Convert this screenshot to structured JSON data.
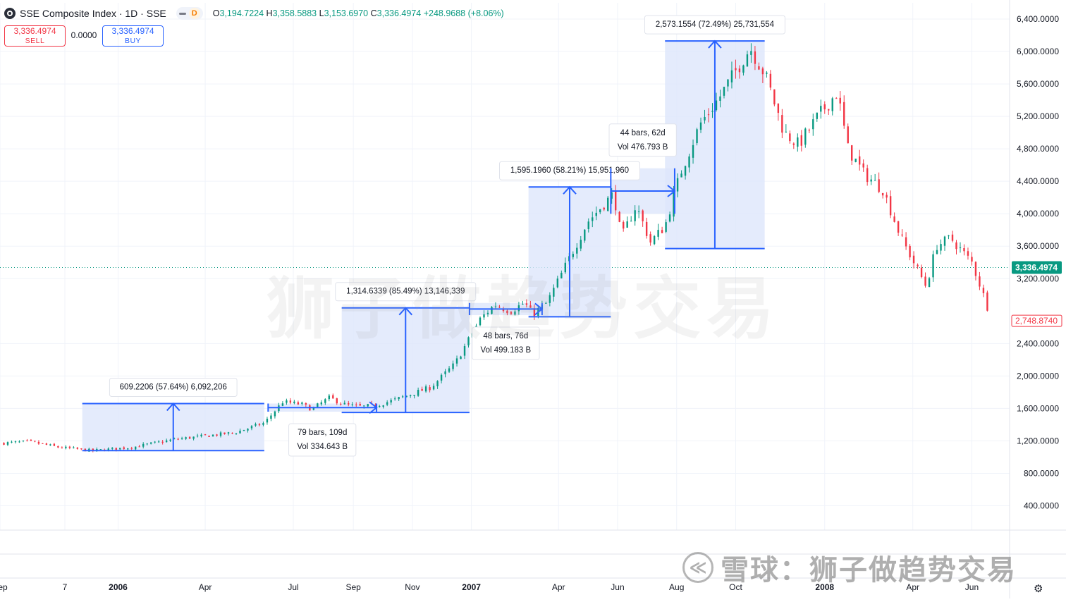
{
  "header": {
    "title": "SSE Composite Index · 1D · SSE",
    "interval_badge": "D",
    "ohlc": [
      {
        "k": "O",
        "v": "3,194.7224"
      },
      {
        "k": "H",
        "v": "3,358.5883"
      },
      {
        "k": "L",
        "v": "3,153.6970"
      },
      {
        "k": "C",
        "v": "3,336.4974"
      }
    ],
    "change": "+248.9688 (+8.06%)"
  },
  "trade": {
    "sell_price": "3,336.4974",
    "sell_label": "SELL",
    "spread": "0.0000",
    "buy_price": "3,336.4974",
    "buy_label": "BUY"
  },
  "watermark": "狮子做趋势交易",
  "footer_brand": "雪球：狮子做趋势交易",
  "footer_icon_glyph": "≪",
  "settings_icon": "gear-icon",
  "colors": {
    "up": "#089981",
    "down": "#f23645",
    "accent": "#2962ff",
    "range_fill": "#dde6fb"
  },
  "chart_data": {
    "type": "candlestick",
    "title": "SSE Composite Index · 1D · SSE",
    "x_labels": [
      {
        "label": "Sep",
        "date": "2005-09-01"
      },
      {
        "label": "7",
        "date": "2005-11-07"
      },
      {
        "label": "2006",
        "date": "2006-01-01"
      },
      {
        "label": "Apr",
        "date": "2006-04-01"
      },
      {
        "label": "Jul",
        "date": "2006-07-01"
      },
      {
        "label": "Sep",
        "date": "2006-09-01"
      },
      {
        "label": "Nov",
        "date": "2006-11-01"
      },
      {
        "label": "2007",
        "date": "2007-01-01"
      },
      {
        "label": "Apr",
        "date": "2007-04-01"
      },
      {
        "label": "Jun",
        "date": "2007-06-01"
      },
      {
        "label": "Aug",
        "date": "2007-08-01"
      },
      {
        "label": "Oct",
        "date": "2007-10-01"
      },
      {
        "label": "2008",
        "date": "2008-01-01"
      },
      {
        "label": "Apr",
        "date": "2008-04-01"
      },
      {
        "label": "Jun",
        "date": "2008-06-01"
      }
    ],
    "y_ticks": [
      {
        "label": "400.0000",
        "value": 400
      },
      {
        "label": "800.0000",
        "value": 800
      },
      {
        "label": "1,200.0000",
        "value": 1200
      },
      {
        "label": "1,600.0000",
        "value": 1600
      },
      {
        "label": "2,000.0000",
        "value": 2000
      },
      {
        "label": "2,400.0000",
        "value": 2400
      },
      {
        "label": "3,200.0000",
        "value": 3200
      },
      {
        "label": "3,600.0000",
        "value": 3600
      },
      {
        "label": "4,000.0000",
        "value": 4000
      },
      {
        "label": "4,400.0000",
        "value": 4400
      },
      {
        "label": "4,800.0000",
        "value": 4800
      },
      {
        "label": "5,200.0000",
        "value": 5200
      },
      {
        "label": "5,600.0000",
        "value": 5600
      },
      {
        "label": "6,000.0000",
        "value": 6000
      },
      {
        "label": "6,400.0000",
        "value": 6400
      }
    ],
    "ylim": [
      100,
      6600
    ],
    "xlim": [
      "2005-09-01",
      "2008-07-10"
    ],
    "price_line": {
      "value": 3336.4974,
      "label": "3,336.4974",
      "color": "#089981"
    },
    "last_marker": {
      "value": 2748.874,
      "label": "2,748.8740",
      "color": "#f23645"
    },
    "series": [
      {
        "date": "2005-09-01",
        "close": 1170
      },
      {
        "date": "2005-10-01",
        "close": 1190
      },
      {
        "date": "2005-11-01",
        "close": 1120
      },
      {
        "date": "2005-12-05",
        "close": 1080
      },
      {
        "date": "2006-01-15",
        "close": 1120
      },
      {
        "date": "2006-03-01",
        "close": 1220
      },
      {
        "date": "2006-05-01",
        "close": 1300
      },
      {
        "date": "2006-06-01",
        "close": 1420
      },
      {
        "date": "2006-06-12",
        "close": 1570
      },
      {
        "date": "2006-06-20",
        "close": 1680
      },
      {
        "date": "2006-07-10",
        "close": 1650
      },
      {
        "date": "2006-07-20",
        "close": 1590
      },
      {
        "date": "2006-08-07",
        "close": 1730
      },
      {
        "date": "2006-08-25",
        "close": 1640
      },
      {
        "date": "2006-09-10",
        "close": 1620
      },
      {
        "date": "2006-09-25",
        "close": 1640
      },
      {
        "date": "2006-10-15",
        "close": 1710
      },
      {
        "date": "2006-11-20",
        "close": 1860
      },
      {
        "date": "2006-12-15",
        "close": 2150
      },
      {
        "date": "2007-01-10",
        "close": 2700
      },
      {
        "date": "2007-01-25",
        "close": 2880
      },
      {
        "date": "2007-02-10",
        "close": 2800
      },
      {
        "date": "2007-02-25",
        "close": 2900
      },
      {
        "date": "2007-03-05",
        "close": 2760
      },
      {
        "date": "2007-03-20",
        "close": 2900
      },
      {
        "date": "2007-04-10",
        "close": 3400
      },
      {
        "date": "2007-05-01",
        "close": 3900
      },
      {
        "date": "2007-05-28",
        "close": 4250
      },
      {
        "date": "2007-06-05",
        "close": 3700
      },
      {
        "date": "2007-06-20",
        "close": 4100
      },
      {
        "date": "2007-07-05",
        "close": 3650
      },
      {
        "date": "2007-07-20",
        "close": 3850
      },
      {
        "date": "2007-08-05",
        "close": 4500
      },
      {
        "date": "2007-08-25",
        "close": 5100
      },
      {
        "date": "2007-09-15",
        "close": 5450
      },
      {
        "date": "2007-10-16",
        "close": 6050
      },
      {
        "date": "2007-11-01",
        "close": 5700
      },
      {
        "date": "2007-11-20",
        "close": 5000
      },
      {
        "date": "2007-12-05",
        "close": 4850
      },
      {
        "date": "2007-12-25",
        "close": 5200
      },
      {
        "date": "2008-01-14",
        "close": 5500
      },
      {
        "date": "2008-01-25",
        "close": 4800
      },
      {
        "date": "2008-02-10",
        "close": 4500
      },
      {
        "date": "2008-03-01",
        "close": 4300
      },
      {
        "date": "2008-03-20",
        "close": 3700
      },
      {
        "date": "2008-04-15",
        "close": 3100
      },
      {
        "date": "2008-04-25",
        "close": 3600
      },
      {
        "date": "2008-05-10",
        "close": 3700
      },
      {
        "date": "2008-06-01",
        "close": 3400
      },
      {
        "date": "2008-06-10",
        "close": 3100
      },
      {
        "date": "2008-06-20",
        "close": 2750
      }
    ],
    "ranges": [
      {
        "start": "2005-11-25",
        "end": "2006-06-01",
        "low": 1080,
        "high": 1660,
        "label": "609.2206 (57.64%) 6,092,206",
        "arrow": "up"
      },
      {
        "start": "2006-06-05",
        "end": "2006-09-25",
        "low": 1560,
        "high": 1660,
        "label": "79 bars, 109d",
        "label2": "Vol 334.643 B",
        "arrow": "right"
      },
      {
        "start": "2006-08-20",
        "end": "2006-12-30",
        "low": 1550,
        "high": 2840,
        "label": "1,314.6339 (85.49%) 13,146,339",
        "arrow": "up"
      },
      {
        "start": "2006-12-30",
        "end": "2007-03-15",
        "low": 2750,
        "high": 2900,
        "label": "48 bars, 76d",
        "label2": "Vol 499.183 B",
        "arrow": "right"
      },
      {
        "start": "2007-03-01",
        "end": "2007-05-25",
        "low": 2730,
        "high": 4330,
        "label": "1,595.1960 (58.21%) 15,951,960",
        "arrow": "up"
      },
      {
        "start": "2007-05-25",
        "end": "2007-07-30",
        "low": 4000,
        "high": 4560,
        "label": "44 bars, 62d",
        "label2": "Vol 476.793 B",
        "arrow": "right"
      },
      {
        "start": "2007-07-20",
        "end": "2007-10-31",
        "low": 3570,
        "high": 6130,
        "label": "2,573.1554 (72.49%) 25,731,554",
        "arrow": "up"
      }
    ]
  }
}
